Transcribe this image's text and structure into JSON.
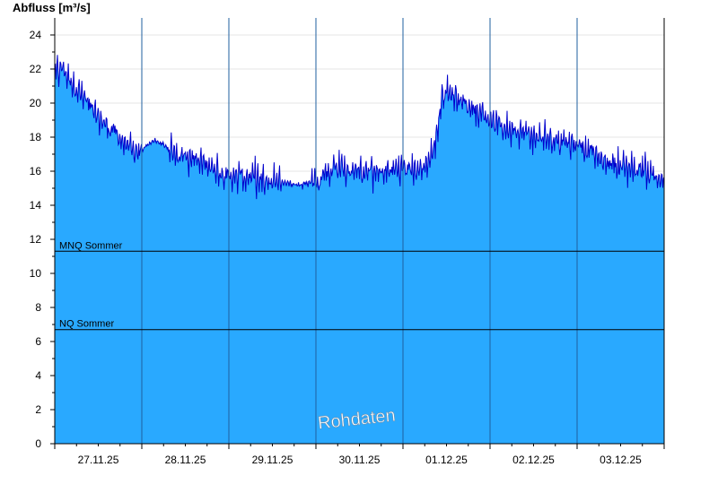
{
  "chart_data": {
    "type": "area",
    "title": "",
    "ylabel": "Abfluss [m³/s]",
    "xlabel": "",
    "ylim": [
      0,
      25
    ],
    "yticks": [
      0,
      2,
      4,
      6,
      8,
      10,
      12,
      14,
      16,
      18,
      20,
      22,
      24
    ],
    "days": [
      "27.11.25",
      "28.11.25",
      "29.11.25",
      "30.11.25",
      "01.12.25",
      "02.12.25",
      "03.12.25"
    ],
    "x_range_days": [
      0,
      7
    ],
    "grid": true,
    "fill_color": "#29A9FF",
    "line_color": "#0000CC",
    "series": [
      {
        "x_days": [
          0.0,
          0.1,
          0.2,
          0.35,
          0.5,
          0.65,
          0.75,
          0.85,
          0.95,
          1.05,
          1.15,
          1.3,
          1.45,
          1.6,
          1.75,
          1.9,
          2.0,
          2.15,
          2.3,
          2.45,
          2.55,
          2.65,
          2.75,
          2.85,
          2.95,
          3.05,
          3.2,
          3.35,
          3.5,
          3.65,
          3.8,
          3.95,
          4.1,
          4.25,
          4.35,
          4.45,
          4.55,
          4.65,
          4.75,
          4.9,
          5.0,
          5.15,
          5.3,
          5.45,
          5.6,
          5.75,
          5.9,
          6.05,
          6.2,
          6.35,
          6.5,
          6.65,
          6.8,
          6.9,
          7.0
        ],
        "values": [
          21.8,
          22.1,
          21.2,
          20.2,
          19.1,
          18.5,
          17.9,
          17.3,
          17.0,
          17.5,
          17.8,
          17.4,
          16.9,
          16.8,
          16.3,
          16.0,
          15.7,
          15.7,
          15.6,
          15.3,
          15.5,
          15.3,
          15.2,
          15.2,
          15.4,
          15.6,
          16.2,
          16.1,
          16.0,
          15.9,
          16.0,
          16.1,
          16.1,
          16.3,
          17.0,
          20.5,
          20.6,
          20.3,
          19.8,
          19.5,
          19.0,
          18.6,
          18.5,
          18.1,
          17.9,
          17.8,
          17.7,
          17.5,
          17.0,
          16.5,
          16.3,
          16.2,
          16.0,
          15.7,
          15.3
        ]
      }
    ],
    "reference_lines": [
      {
        "label": "MNQ Sommer",
        "value": 11.3
      },
      {
        "label": "NQ Sommer",
        "value": 6.7
      }
    ],
    "watermark": "Rohdaten"
  }
}
